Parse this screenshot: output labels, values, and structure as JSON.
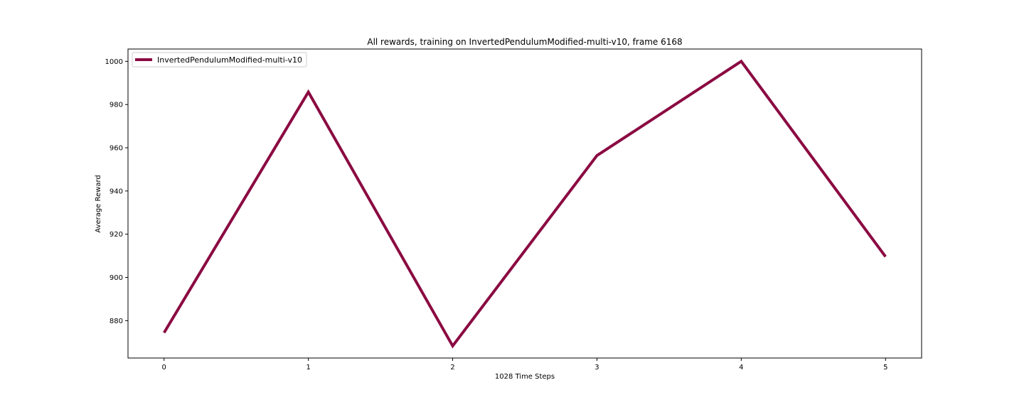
{
  "chart_data": {
    "type": "line",
    "title": "All rewards, training on InvertedPendulumModified-multi-v10, frame 6168",
    "xlabel": "1028 Time Steps",
    "ylabel": "Average Reward",
    "x": [
      0,
      1,
      2,
      3,
      4,
      5
    ],
    "series": [
      {
        "name": "InvertedPendulumModified-multi-v10",
        "values": [
          874.4,
          985.8,
          868.3,
          956.4,
          1000.0,
          909.6
        ],
        "color": "#8b0a42"
      }
    ],
    "xlim": [
      -0.25,
      5.25
    ],
    "ylim": [
      862.7,
      1005.7
    ],
    "xticks": [
      0,
      1,
      2,
      3,
      4,
      5
    ],
    "yticks": [
      880,
      900,
      920,
      940,
      960,
      980,
      1000
    ],
    "grid": false,
    "legend": "top-left"
  }
}
